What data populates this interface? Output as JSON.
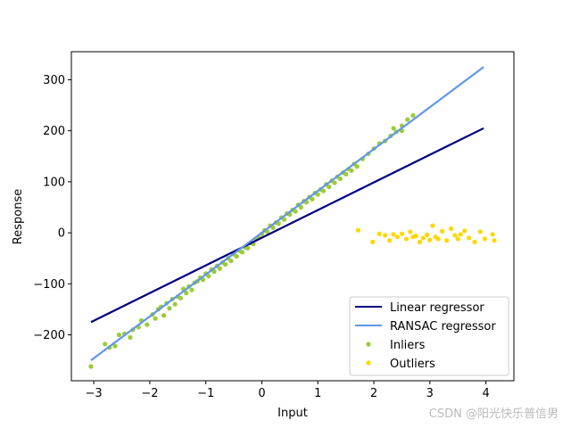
{
  "chart_data": {
    "type": "scatter",
    "xlabel": "Input",
    "ylabel": "Response",
    "xlim": [
      -3.4,
      4.5
    ],
    "ylim": [
      -290,
      355
    ],
    "xticks": [
      -3,
      -2,
      -1,
      0,
      1,
      2,
      3,
      4
    ],
    "yticks": [
      -200,
      -100,
      0,
      100,
      200,
      300
    ],
    "ytick_labels": [
      "−200",
      "−100",
      "0",
      "100",
      "200",
      "300"
    ],
    "xtick_labels": [
      "−3",
      "−2",
      "−1",
      "0",
      "1",
      "2",
      "3",
      "4"
    ],
    "grid": false,
    "legend_position": "lower-right",
    "lines": [
      {
        "name": "Linear regressor",
        "color": "#000080",
        "x": [
          -3.05,
          3.96
        ],
        "y": [
          -175,
          205
        ]
      },
      {
        "name": "RANSAC regressor",
        "color": "#6495ED",
        "x": [
          -3.05,
          3.96
        ],
        "y": [
          -250,
          325
        ]
      }
    ],
    "inliers": {
      "name": "Inliers",
      "color": "#9ACD32",
      "points": [
        [
          -3.05,
          -262
        ],
        [
          -2.8,
          -218
        ],
        [
          -2.72,
          -225
        ],
        [
          -2.62,
          -222
        ],
        [
          -2.55,
          -200
        ],
        [
          -2.45,
          -198
        ],
        [
          -2.35,
          -205
        ],
        [
          -2.3,
          -190
        ],
        [
          -2.2,
          -185
        ],
        [
          -2.15,
          -172
        ],
        [
          -2.05,
          -180
        ],
        [
          -1.95,
          -160
        ],
        [
          -1.9,
          -168
        ],
        [
          -1.85,
          -150
        ],
        [
          -1.8,
          -145
        ],
        [
          -1.75,
          -162
        ],
        [
          -1.7,
          -138
        ],
        [
          -1.65,
          -148
        ],
        [
          -1.6,
          -130
        ],
        [
          -1.55,
          -140
        ],
        [
          -1.5,
          -125
        ],
        [
          -1.45,
          -128
        ],
        [
          -1.4,
          -110
        ],
        [
          -1.35,
          -118
        ],
        [
          -1.3,
          -105
        ],
        [
          -1.25,
          -112
        ],
        [
          -1.2,
          -98
        ],
        [
          -1.15,
          -95
        ],
        [
          -1.1,
          -88
        ],
        [
          -1.05,
          -92
        ],
        [
          -1.0,
          -80
        ],
        [
          -0.95,
          -85
        ],
        [
          -0.9,
          -72
        ],
        [
          -0.85,
          -76
        ],
        [
          -0.8,
          -65
        ],
        [
          -0.75,
          -70
        ],
        [
          -0.7,
          -58
        ],
        [
          -0.65,
          -62
        ],
        [
          -0.6,
          -50
        ],
        [
          -0.55,
          -55
        ],
        [
          -0.5,
          -42
        ],
        [
          -0.45,
          -46
        ],
        [
          -0.4,
          -35
        ],
        [
          -0.35,
          -38
        ],
        [
          -0.3,
          -28
        ],
        [
          -0.25,
          -30
        ],
        [
          -0.2,
          -20
        ],
        [
          -0.15,
          -22
        ],
        [
          -0.1,
          -12
        ],
        [
          -0.05,
          -10
        ],
        [
          0.0,
          -2
        ],
        [
          0.05,
          5
        ],
        [
          0.1,
          2
        ],
        [
          0.15,
          14
        ],
        [
          0.2,
          10
        ],
        [
          0.25,
          20
        ],
        [
          0.3,
          18
        ],
        [
          0.35,
          30
        ],
        [
          0.4,
          26
        ],
        [
          0.45,
          38
        ],
        [
          0.5,
          36
        ],
        [
          0.55,
          45
        ],
        [
          0.6,
          42
        ],
        [
          0.65,
          55
        ],
        [
          0.7,
          50
        ],
        [
          0.75,
          62
        ],
        [
          0.8,
          60
        ],
        [
          0.85,
          70
        ],
        [
          0.9,
          66
        ],
        [
          0.95,
          78
        ],
        [
          1.0,
          75
        ],
        [
          1.05,
          85
        ],
        [
          1.1,
          82
        ],
        [
          1.15,
          95
        ],
        [
          1.2,
          90
        ],
        [
          1.25,
          102
        ],
        [
          1.3,
          98
        ],
        [
          1.35,
          110
        ],
        [
          1.4,
          106
        ],
        [
          1.45,
          118
        ],
        [
          1.5,
          115
        ],
        [
          1.55,
          125
        ],
        [
          1.6,
          122
        ],
        [
          1.65,
          135
        ],
        [
          1.7,
          130
        ],
        [
          1.8,
          145
        ],
        [
          1.9,
          155
        ],
        [
          2.0,
          165
        ],
        [
          2.1,
          175
        ],
        [
          2.2,
          180
        ],
        [
          2.3,
          190
        ],
        [
          2.4,
          198
        ],
        [
          2.5,
          210
        ],
        [
          2.6,
          222
        ],
        [
          2.7,
          230
        ],
        [
          2.5,
          200
        ],
        [
          2.35,
          205
        ]
      ]
    },
    "outliers": {
      "name": "Outliers",
      "color": "#FFD700",
      "points": [
        [
          1.72,
          5
        ],
        [
          1.98,
          -18
        ],
        [
          2.1,
          -2
        ],
        [
          2.2,
          -5
        ],
        [
          2.28,
          -15
        ],
        [
          2.35,
          -3
        ],
        [
          2.42,
          -8
        ],
        [
          2.5,
          -2
        ],
        [
          2.58,
          -12
        ],
        [
          2.65,
          2
        ],
        [
          2.75,
          -6
        ],
        [
          2.82,
          -18
        ],
        [
          2.88,
          -10
        ],
        [
          2.95,
          -4
        ],
        [
          3.0,
          -14
        ],
        [
          3.05,
          14
        ],
        [
          3.1,
          -8
        ],
        [
          3.15,
          -12
        ],
        [
          3.22,
          3
        ],
        [
          3.3,
          -15
        ],
        [
          3.38,
          8
        ],
        [
          3.45,
          -5
        ],
        [
          3.5,
          -12
        ],
        [
          3.55,
          -3
        ],
        [
          3.62,
          4
        ],
        [
          3.7,
          -10
        ],
        [
          3.8,
          -18
        ],
        [
          3.9,
          2
        ],
        [
          3.98,
          -12
        ],
        [
          4.12,
          -3
        ],
        [
          4.15,
          -15
        ],
        [
          2.7,
          -8
        ]
      ]
    }
  },
  "watermark": "CSDN @阳光快乐普信男"
}
